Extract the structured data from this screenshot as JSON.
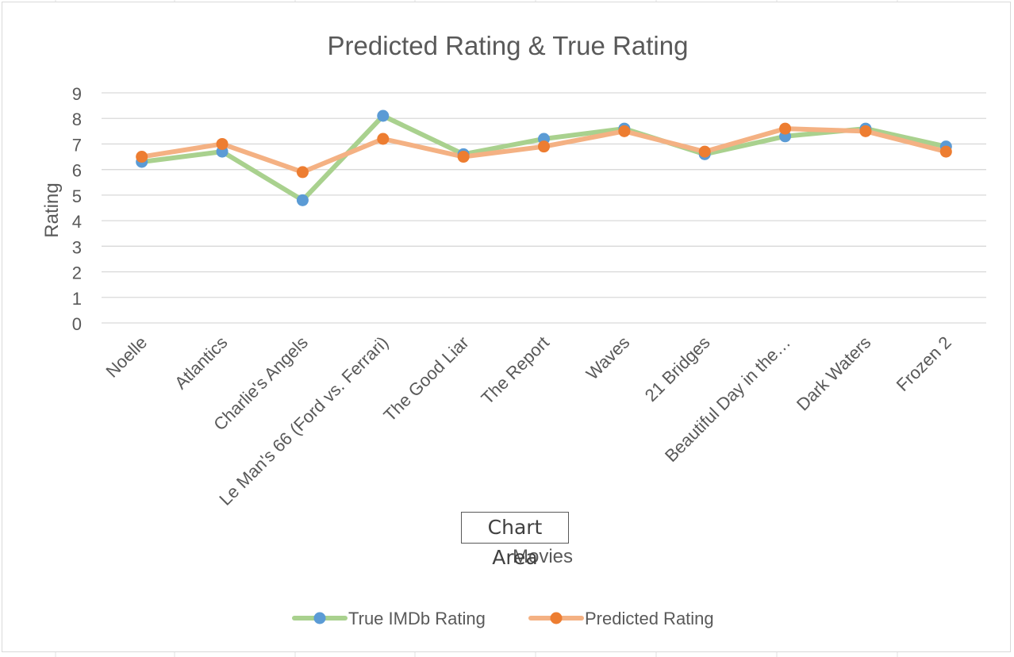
{
  "chart_data": {
    "type": "line",
    "title": "Predicted Rating & True Rating",
    "xlabel": "Movies",
    "ylabel": "Rating",
    "ylim": [
      0,
      9
    ],
    "yticks": [
      0,
      1,
      2,
      3,
      4,
      5,
      6,
      7,
      8,
      9
    ],
    "grid": true,
    "legend_position": "bottom",
    "categories": [
      "Noelle",
      "Atlantics",
      "Charlie's Angels",
      "Le Man's 66 (Ford vs. Ferrari)",
      "The Good Liar",
      "The Report",
      "Waves",
      "21 Bridges",
      "Beautiful Day in the…",
      "Dark Waters",
      "Frozen 2"
    ],
    "series": [
      {
        "name": "True IMDb Rating",
        "values": [
          6.3,
          6.7,
          4.8,
          8.1,
          6.6,
          7.2,
          7.6,
          6.6,
          7.3,
          7.6,
          6.9
        ],
        "line_color": "#a9d18e",
        "marker_color": "#5b9bd5"
      },
      {
        "name": "Predicted Rating",
        "values": [
          6.5,
          7.0,
          5.9,
          7.2,
          6.5,
          6.9,
          7.5,
          6.7,
          7.6,
          7.5,
          6.7
        ],
        "line_color": "#f4b183",
        "marker_color": "#ed7d31"
      }
    ]
  },
  "tooltip_text": "Chart Area",
  "colors": {
    "gridline": "#d9d9d9",
    "text": "#595959",
    "title": "#595959"
  }
}
